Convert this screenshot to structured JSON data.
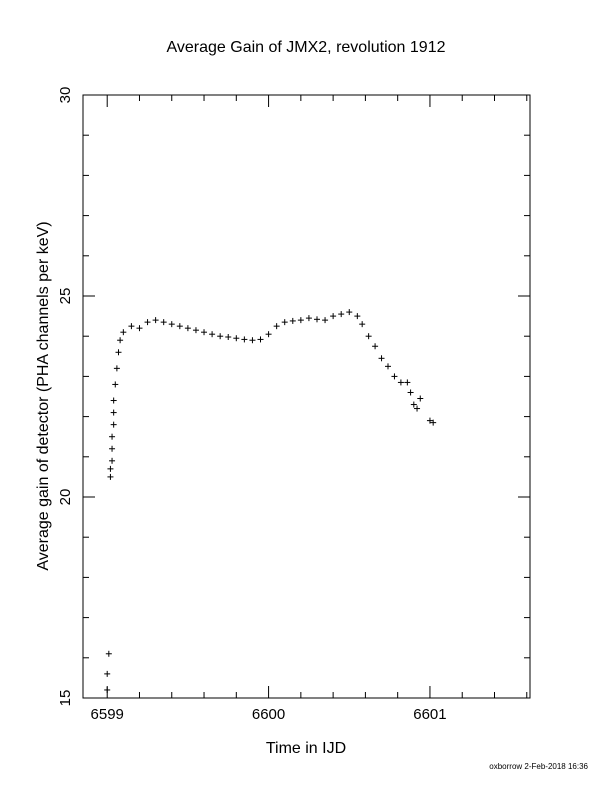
{
  "chart_data": {
    "type": "scatter",
    "title": "Average Gain of JMX2, revolution 1912",
    "xlabel": "Time in IJD",
    "ylabel": "Average gain of detector (PHA channels per keV)",
    "xlim": [
      6598.85,
      6601.62
    ],
    "ylim": [
      15,
      30
    ],
    "x_ticks": [
      6599,
      6600,
      6601
    ],
    "x_tick_labels": [
      "6599",
      "6600",
      "6601"
    ],
    "y_ticks": [
      15,
      20,
      25,
      30
    ],
    "y_tick_labels": [
      "15",
      "20",
      "25",
      "30"
    ],
    "marker": "plus",
    "grid": false,
    "legend": "none",
    "footer": "oxborrow  2-Feb-2018 16:36",
    "x": [
      6599.0,
      6599.0,
      6599.01,
      6599.02,
      6599.02,
      6599.03,
      6599.03,
      6599.03,
      6599.04,
      6599.04,
      6599.04,
      6599.05,
      6599.06,
      6599.07,
      6599.08,
      6599.1,
      6599.15,
      6599.2,
      6599.25,
      6599.3,
      6599.35,
      6599.4,
      6599.45,
      6599.5,
      6599.55,
      6599.6,
      6599.65,
      6599.7,
      6599.75,
      6599.8,
      6599.85,
      6599.9,
      6599.95,
      6600.0,
      6600.05,
      6600.1,
      6600.15,
      6600.2,
      6600.25,
      6600.3,
      6600.35,
      6600.4,
      6600.45,
      6600.5,
      6600.55,
      6600.58,
      6600.62,
      6600.66,
      6600.7,
      6600.74,
      6600.78,
      6600.82,
      6600.86,
      6600.88,
      6600.9,
      6600.92,
      6600.94,
      6601.0,
      6601.02
    ],
    "y": [
      15.2,
      15.6,
      16.1,
      20.5,
      20.7,
      20.9,
      21.2,
      21.5,
      21.8,
      22.1,
      22.4,
      22.8,
      23.2,
      23.6,
      23.9,
      24.1,
      24.25,
      24.2,
      24.35,
      24.4,
      24.35,
      24.3,
      24.25,
      24.2,
      24.15,
      24.1,
      24.05,
      24.0,
      23.98,
      23.95,
      23.92,
      23.9,
      23.92,
      24.05,
      24.25,
      24.35,
      24.38,
      24.4,
      24.45,
      24.42,
      24.4,
      24.5,
      24.55,
      24.6,
      24.5,
      24.3,
      24.0,
      23.75,
      23.45,
      23.25,
      23.0,
      22.85,
      22.85,
      22.6,
      22.3,
      22.2,
      22.45,
      21.9,
      21.85
    ]
  }
}
